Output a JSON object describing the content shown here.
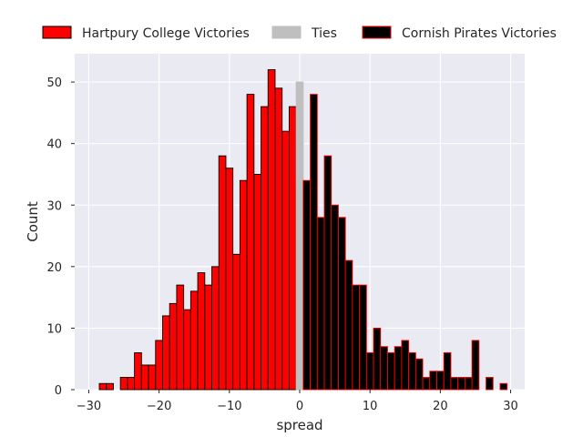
{
  "chart_data": {
    "type": "bar",
    "xlabel": "spread",
    "ylabel": "Count",
    "xlim": [
      -32,
      32
    ],
    "ylim": [
      0,
      54.6
    ],
    "xticks": [
      -30,
      -20,
      -10,
      0,
      10,
      20,
      30
    ],
    "xtick_labels": [
      "−30",
      "−20",
      "−10",
      "0",
      "10",
      "20",
      "30"
    ],
    "yticks": [
      0,
      10,
      20,
      30,
      40,
      50
    ],
    "ytick_labels": [
      "0",
      "10",
      "20",
      "30",
      "40",
      "50"
    ],
    "grid": true,
    "legend_position": "top",
    "bin_width": 1,
    "series": [
      {
        "name": "Hartpury College Victories",
        "color": "#ff0000",
        "edge_color": "#000000",
        "x": [
          -29,
          -28,
          -27,
          -26,
          -25,
          -24,
          -23,
          -22,
          -21,
          -20,
          -19,
          -18,
          -17,
          -16,
          -15,
          -14,
          -13,
          -12,
          -11,
          -10,
          -9,
          -8,
          -7,
          -6,
          -5,
          -4,
          -3,
          -2,
          -1
        ],
        "values": [
          0,
          1,
          1,
          0,
          2,
          2,
          6,
          4,
          4,
          8,
          12,
          14,
          17,
          13,
          16,
          19,
          17,
          20,
          38,
          36,
          22,
          34,
          48,
          35,
          46,
          52,
          49,
          42,
          46
        ]
      },
      {
        "name": "Ties",
        "color": "#bfbfbf",
        "edge_color": "#bfbfbf",
        "x": [
          0
        ],
        "values": [
          50
        ]
      },
      {
        "name": "Cornish Pirates Victories",
        "color": "#000000",
        "edge_color": "#ff0000",
        "x": [
          1,
          2,
          3,
          4,
          5,
          6,
          7,
          8,
          9,
          10,
          11,
          12,
          13,
          14,
          15,
          16,
          17,
          18,
          19,
          20,
          21,
          22,
          23,
          24,
          25,
          26,
          27,
          28,
          29
        ],
        "values": [
          34,
          48,
          28,
          38,
          30,
          28,
          21,
          17,
          17,
          6,
          10,
          7,
          6,
          7,
          8,
          6,
          5,
          2,
          3,
          3,
          6,
          2,
          2,
          2,
          8,
          0,
          2,
          0,
          1
        ]
      }
    ]
  }
}
